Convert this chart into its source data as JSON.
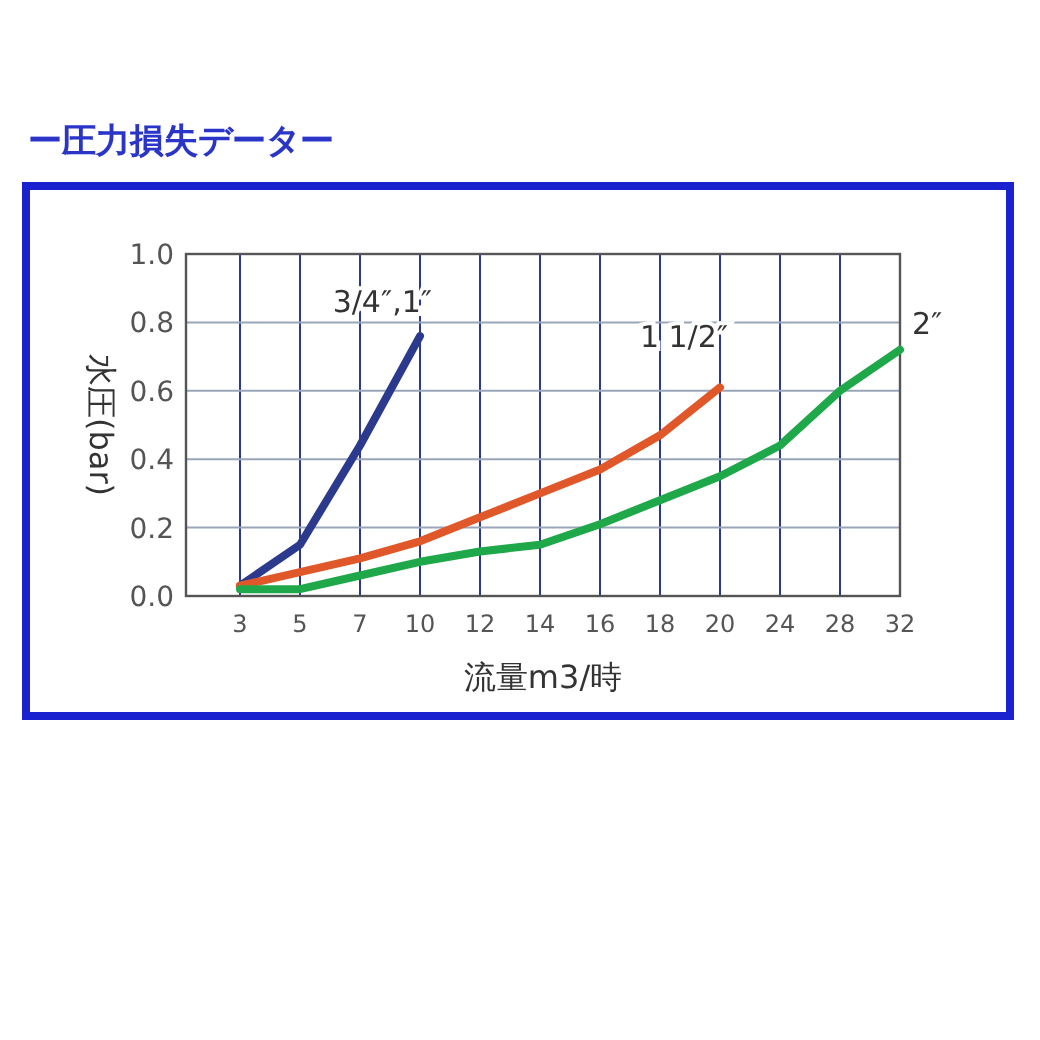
{
  "chart_data": {
    "type": "line",
    "title": "ー圧力損失データー",
    "xlabel": "流量m3/時",
    "ylabel": "水圧(bar)",
    "categories": [
      "3",
      "5",
      "7",
      "10",
      "12",
      "14",
      "16",
      "18",
      "20",
      "24",
      "28",
      "32"
    ],
    "ylim": [
      0,
      1
    ],
    "yticks": [
      {
        "value": 0,
        "label": "0.0"
      },
      {
        "value": 0.2,
        "label": "0.2"
      },
      {
        "value": 0.4,
        "label": "0.4"
      },
      {
        "value": 0.6,
        "label": "0.6"
      },
      {
        "value": 0.8,
        "label": "0.8"
      },
      {
        "value": 1,
        "label": "1.0"
      }
    ],
    "grid": true,
    "marker": "none",
    "line_style": "solid",
    "series": [
      {
        "name": "3/4″,1″",
        "color": "#2b3a8c",
        "values": [
          0.03,
          0.15,
          0.44,
          0.76,
          null,
          null,
          null,
          null,
          null,
          null,
          null,
          null
        ]
      },
      {
        "name": "1 1/2″",
        "color": "#e0582a",
        "values": [
          0.03,
          0.07,
          0.11,
          0.16,
          0.23,
          0.3,
          0.37,
          0.47,
          0.61,
          null,
          null,
          null
        ]
      },
      {
        "name": "2″",
        "color": "#1fa84a",
        "values": [
          0.02,
          0.02,
          0.06,
          0.1,
          0.13,
          0.15,
          0.21,
          0.28,
          0.35,
          0.44,
          0.6,
          0.72
        ]
      }
    ]
  }
}
